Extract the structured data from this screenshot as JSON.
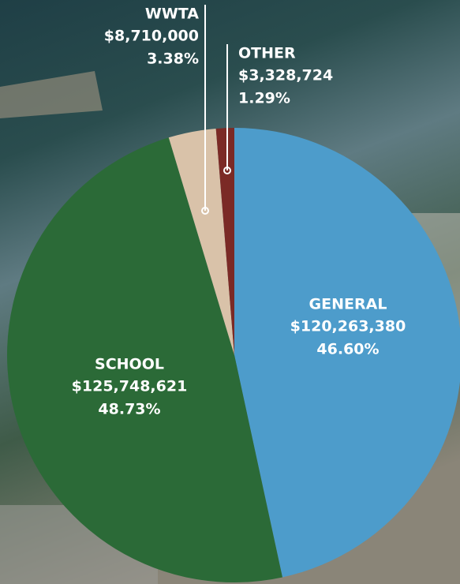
{
  "chart_data": {
    "type": "pie",
    "categories": [
      "GENERAL",
      "SCHOOL",
      "WWTA",
      "OTHER"
    ],
    "values": [
      120263380,
      125748621,
      8710000,
      3328724
    ],
    "value_labels": [
      "$120,263,380",
      "$125,748,621",
      "$8,710,000",
      "$3,328,724"
    ],
    "percents": [
      46.6,
      48.73,
      3.38,
      1.29
    ],
    "percent_labels": [
      "46.60%",
      "48.73%",
      "3.38%",
      "1.29%"
    ],
    "colors": [
      "#4d9ccb",
      "#2b6a37",
      "#d9c2a9",
      "#7b2a26"
    ]
  }
}
